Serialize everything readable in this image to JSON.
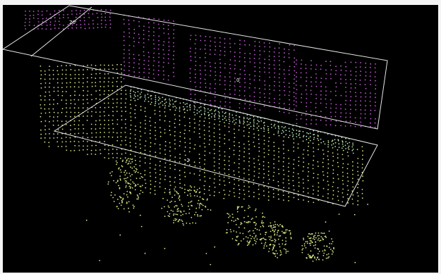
{
  "viewer": {
    "background_color": "#000000",
    "border_color": "#f4f4f4",
    "plane_outline_color": "#e6e6e6",
    "label_color": "#ffffff"
  },
  "planes": [
    {
      "name": "upper-slice-plane",
      "label": "20"
    },
    {
      "name": "middle-slice-plane",
      "label": "0"
    },
    {
      "name": "lower-slice-plane",
      "label": "-2"
    }
  ],
  "point_clouds": [
    {
      "name": "upper-point-cloud",
      "color": "#c35bd9"
    },
    {
      "name": "intersection-point-cloud",
      "color": "#a7e3c5"
    },
    {
      "name": "lower-point-cloud",
      "color": "#d7e483"
    }
  ]
}
